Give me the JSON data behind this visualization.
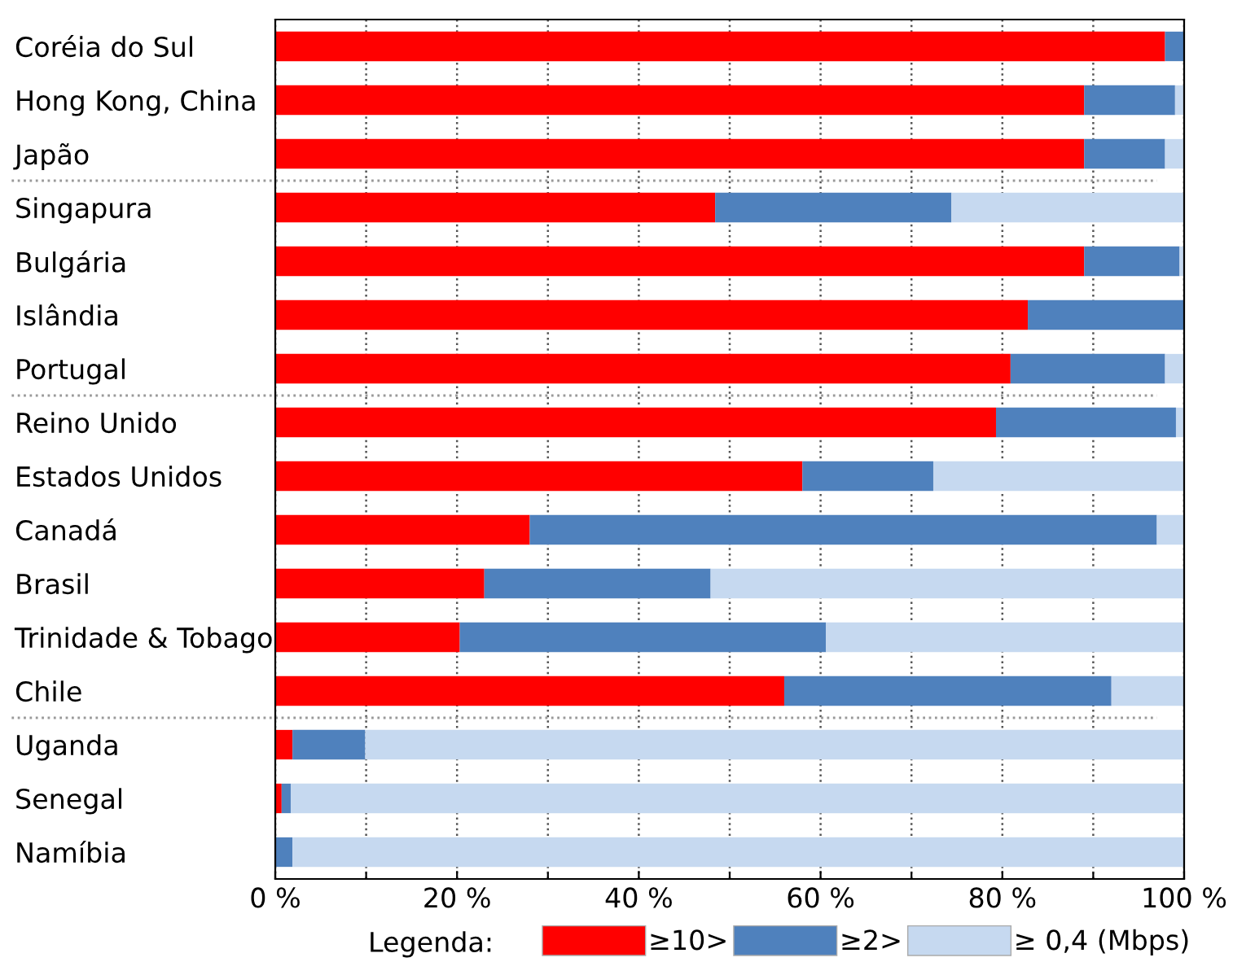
{
  "chart_data": {
    "type": "bar",
    "orientation": "horizontal",
    "stacked": true,
    "categories": [
      "Coréia do Sul",
      "Hong Kong, China",
      "Japão",
      "Singapura",
      "Bulgária",
      "Islândia",
      "Portugal",
      "Reino Unido",
      "Estados Unidos",
      "Canadá",
      "Brasil",
      "Trinidade & Tobago",
      "Chile",
      "Uganda",
      "Senegal",
      "Namíbia"
    ],
    "series": [
      {
        "name": "≥10>",
        "color": "#ff0000",
        "values": [
          97.9,
          89.0,
          89.0,
          48.4,
          89.0,
          82.8,
          80.9,
          79.3,
          58.0,
          28.0,
          23.0,
          20.3,
          56.0,
          1.9,
          0.7,
          0
        ]
      },
      {
        "name": "≥2>",
        "color": "#4f81bd",
        "values": [
          2.1,
          10.0,
          8.9,
          26.0,
          10.5,
          17.2,
          17.0,
          19.8,
          14.4,
          69.0,
          24.9,
          40.3,
          36.0,
          8.0,
          1.0,
          1.9
        ]
      },
      {
        "name": "≥ 0,4 (Mbps)",
        "color": "#c6d9f0",
        "values": [
          0,
          1.0,
          2.1,
          25.6,
          0.5,
          0,
          2.1,
          0.9,
          27.6,
          3.0,
          52.1,
          39.4,
          8.0,
          90.1,
          98.3,
          98.1
        ]
      }
    ],
    "xlim": [
      0,
      100
    ],
    "xticks": [
      {
        "value": 0,
        "label": "0 %"
      },
      {
        "value": 10,
        "label": null
      },
      {
        "value": 20,
        "label": "20 %"
      },
      {
        "value": 30,
        "label": null
      },
      {
        "value": 40,
        "label": "40 %"
      },
      {
        "value": 50,
        "label": null
      },
      {
        "value": 60,
        "label": "60 %"
      },
      {
        "value": 70,
        "label": null
      },
      {
        "value": 80,
        "label": "80 %"
      },
      {
        "value": 90,
        "label": null
      },
      {
        "value": 100,
        "label": "100 %"
      }
    ],
    "grid": "x",
    "legend": "bottom",
    "legend_title": "Legenda:"
  }
}
